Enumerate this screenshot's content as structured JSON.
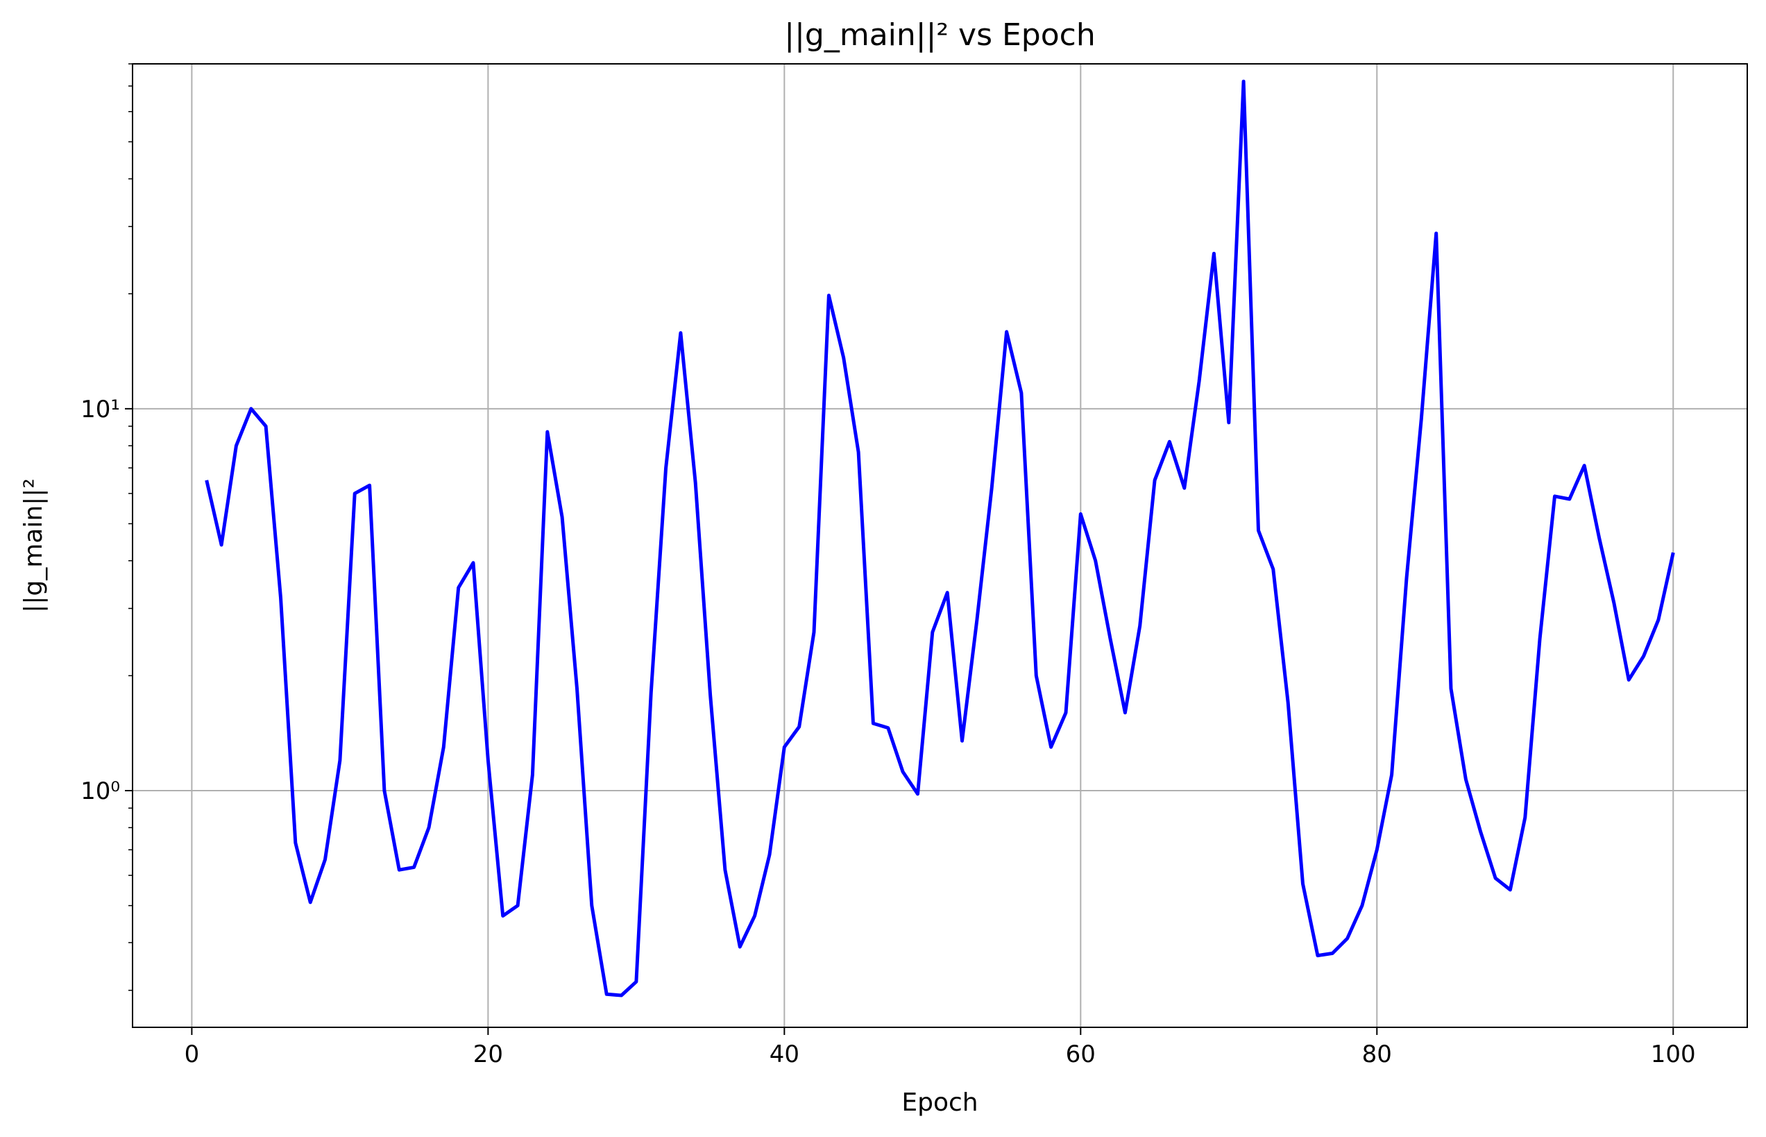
{
  "chart_data": {
    "type": "line",
    "title": "||g_main||² vs Epoch",
    "xlabel": "Epoch",
    "ylabel": "||g_main||²",
    "yscale": "log",
    "xlim": [
      -4,
      105
    ],
    "ylim": [
      0.24,
      80
    ],
    "x_ticks": [
      0,
      20,
      40,
      60,
      80,
      100
    ],
    "y_ticks": [
      {
        "value": 1,
        "label": "10⁰"
      },
      {
        "value": 10,
        "label": "10¹"
      }
    ],
    "grid": true,
    "series": [
      {
        "color": "#0000ff",
        "x": [
          1,
          2,
          3,
          4,
          5,
          6,
          7,
          8,
          9,
          10,
          11,
          12,
          13,
          14,
          15,
          16,
          17,
          18,
          19,
          20,
          21,
          22,
          23,
          24,
          25,
          26,
          27,
          28,
          29,
          30,
          31,
          32,
          33,
          34,
          35,
          36,
          37,
          38,
          39,
          40,
          41,
          42,
          43,
          44,
          45,
          46,
          47,
          48,
          49,
          50,
          51,
          52,
          53,
          54,
          55,
          56,
          57,
          58,
          59,
          60,
          61,
          62,
          63,
          64,
          65,
          66,
          67,
          68,
          69,
          70,
          71,
          72,
          73,
          74,
          75,
          76,
          77,
          78,
          79,
          80,
          81,
          82,
          83,
          84,
          85,
          86,
          87,
          88,
          89,
          90,
          91,
          92,
          93,
          94,
          95,
          96,
          97,
          98,
          99,
          100
        ],
        "y": [
          6.5,
          4.4,
          8.0,
          10.0,
          9.0,
          3.2,
          0.73,
          0.51,
          0.66,
          1.2,
          6.0,
          6.3,
          1.0,
          0.62,
          0.63,
          0.8,
          1.3,
          3.4,
          3.95,
          1.2,
          0.47,
          0.5,
          1.1,
          8.7,
          5.2,
          1.85,
          0.5,
          0.293,
          0.291,
          0.316,
          1.8,
          7.0,
          15.8,
          6.4,
          1.78,
          0.62,
          0.39,
          0.47,
          0.68,
          1.3,
          1.47,
          2.6,
          19.8,
          13.6,
          7.7,
          1.5,
          1.46,
          1.12,
          0.98,
          2.6,
          3.3,
          1.35,
          2.8,
          6.2,
          15.9,
          11.0,
          2.0,
          1.3,
          1.6,
          5.3,
          4.0,
          2.5,
          1.6,
          2.7,
          6.5,
          8.2,
          6.2,
          11.8,
          25.5,
          9.2,
          72.0,
          4.8,
          3.8,
          1.7,
          0.57,
          0.37,
          0.375,
          0.41,
          0.5,
          0.7,
          1.1,
          3.6,
          9.4,
          28.8,
          1.85,
          1.07,
          0.78,
          0.59,
          0.55,
          0.85,
          2.5,
          5.9,
          5.8,
          7.1,
          4.6,
          3.1,
          1.95,
          2.25,
          2.8,
          4.2
        ]
      }
    ]
  }
}
